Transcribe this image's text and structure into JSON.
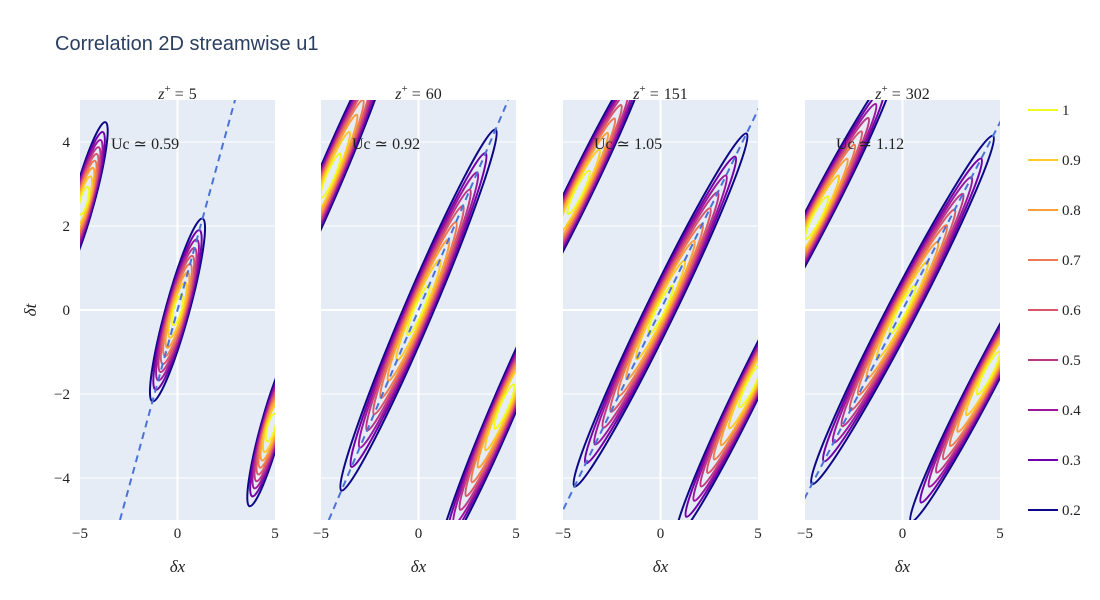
{
  "title": "Correlation 2D streamwise u1",
  "chart_data": {
    "type": "contour",
    "title": "Correlation 2D streamwise u1",
    "xlabel": "δx",
    "ylabel": "δt",
    "xlim": [
      -5,
      5
    ],
    "ylim": [
      -5,
      5
    ],
    "xticks": [
      "−5",
      "0",
      "5"
    ],
    "yticks": [
      "−4",
      "−2",
      "0",
      "2",
      "4"
    ],
    "contour_levels": [
      "1",
      "0.9",
      "0.8",
      "0.7",
      "0.6",
      "0.5",
      "0.4",
      "0.3",
      "0.2"
    ],
    "colors": {
      "1": "#f0f921",
      "0.9": "#fdca26",
      "0.8": "#fb9f3a",
      "0.7": "#ed7953",
      "0.6": "#d8576b",
      "0.5": "#bd3786",
      "0.4": "#9c179e",
      "0.3": "#7201a8",
      "0.2": "#0d0887",
      "dash": "#4a72d8",
      "plot_bg": "#e5ecf6",
      "grid": "#ffffff"
    },
    "panels": [
      {
        "subtitle_var": "z",
        "subtitle_sup": "+",
        "subtitle_rel": "=",
        "subtitle_val": "5",
        "uc_label": "Uc ≃ 0.59",
        "uc": 0.59
      },
      {
        "subtitle_var": "z",
        "subtitle_sup": "+",
        "subtitle_rel": "=",
        "subtitle_val": "60",
        "uc_label": "Uc ≃ 0.92",
        "uc": 0.92
      },
      {
        "subtitle_var": "z",
        "subtitle_sup": "+",
        "subtitle_rel": "=",
        "subtitle_val": "151",
        "uc_label": "Uc ≃ 1.05",
        "uc": 1.05
      },
      {
        "subtitle_var": "z",
        "subtitle_sup": "+",
        "subtitle_rel": "=",
        "subtitle_val": "302",
        "uc_label": "Uc ≃ 1.12",
        "uc": 1.12
      }
    ]
  }
}
